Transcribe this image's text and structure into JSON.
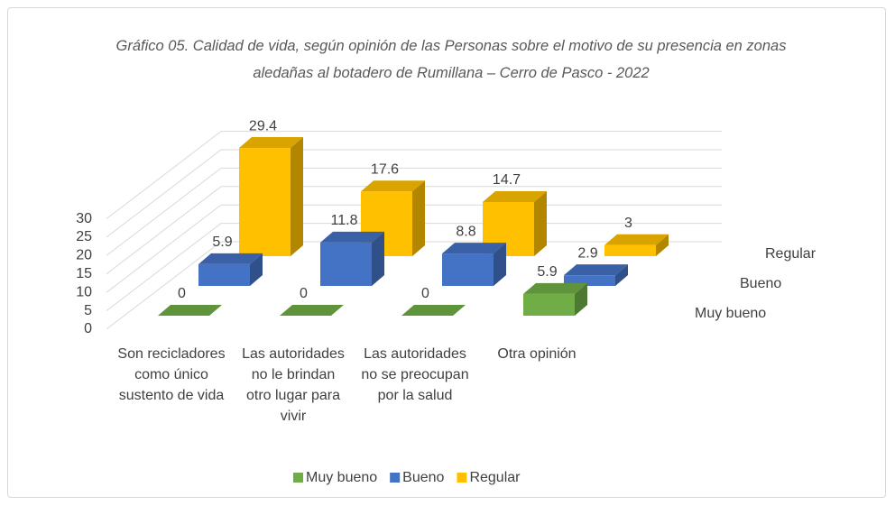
{
  "chart_data": {
    "type": "bar3d",
    "title": "Gráfico 05. Calidad de vida, según opinión de las Personas sobre el motivo de su presencia en zonas aledañas al botadero de Rumillana  – Cerro de Pasco - 2022",
    "categories": [
      "Son recicladores como único sustento de vida",
      "Las autoridades no le brindan otro lugar para vivir",
      "Las autoridades no se preocupan por la salud",
      "Otra opinión"
    ],
    "series": [
      {
        "name": "Muy bueno",
        "color": "#70ad47",
        "values": [
          0,
          0,
          0,
          5.9
        ]
      },
      {
        "name": "Bueno",
        "color": "#4472c4",
        "values": [
          5.9,
          11.8,
          8.8,
          2.9
        ]
      },
      {
        "name": "Regular",
        "color": "#ffc000",
        "values": [
          29.4,
          17.6,
          14.7,
          3
        ]
      }
    ],
    "ylim": [
      0,
      30
    ],
    "yticks": [
      0,
      5,
      10,
      15,
      20,
      25,
      30
    ],
    "grid": true,
    "legend": "bottom"
  }
}
